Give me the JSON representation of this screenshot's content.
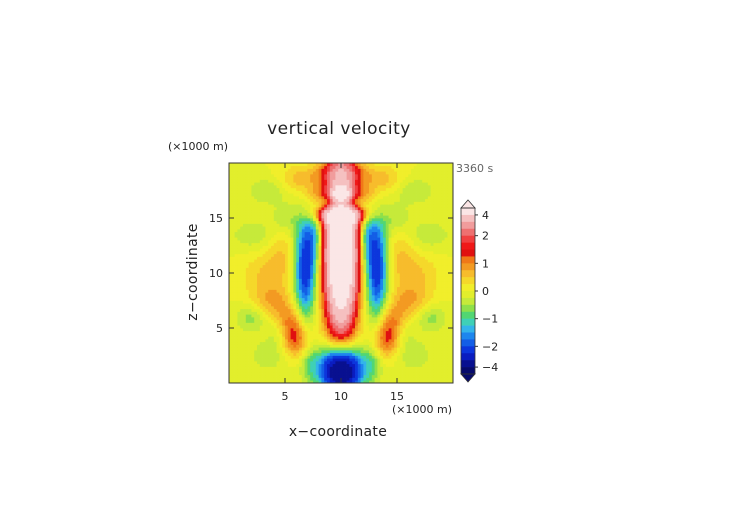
{
  "chart_data": {
    "type": "heatmap",
    "title": "vertical velocity",
    "time_label": "3360 s",
    "xlabel": "x−coordinate",
    "ylabel": "z−coordinate",
    "x_unit": "(×1000 m)",
    "y_unit": "(×1000 m)",
    "xlim": [
      0,
      20
    ],
    "ylim": [
      0,
      20
    ],
    "x_ticks": [
      5,
      10,
      15
    ],
    "y_ticks": [
      5,
      10,
      15
    ],
    "x_tick_labels": [
      "5",
      "10",
      "15"
    ],
    "y_tick_labels": [
      "5",
      "10",
      "15"
    ],
    "colorbar": {
      "tick_values": [
        4,
        2,
        1,
        0,
        -1,
        -2,
        -4
      ],
      "tick_labels": [
        "4",
        "2",
        "1",
        "0",
        "−1",
        "−2",
        "−4"
      ],
      "levels": [
        5,
        4,
        3,
        2.5,
        2,
        1.75,
        1.5,
        1.25,
        1,
        0.75,
        0.5,
        0.25,
        0,
        -0.25,
        -0.5,
        -0.75,
        -1,
        -1.25,
        -1.5,
        -1.75,
        -2,
        -2.5,
        -3,
        -4,
        -5
      ],
      "colors": [
        "#fbe6e6",
        "#f5c0c0",
        "#f19c9c",
        "#ee7070",
        "#f04040",
        "#f01818",
        "#e01010",
        "#f07818",
        "#f39a22",
        "#f7bc2c",
        "#f5d82a",
        "#f1ee2a",
        "#e2ee2c",
        "#c6ea3a",
        "#8fe04a",
        "#52d672",
        "#3fd0b6",
        "#33b4ea",
        "#1d86ee",
        "#135ee6",
        "#0c36dc",
        "#0a1cc0",
        "#081090",
        "#060a6c"
      ],
      "over_color": "#fbe6e6",
      "under_color": "#060a6c"
    },
    "features": [
      {
        "x": 10,
        "z": 12.0,
        "sx": 1.0,
        "sz": 5.0,
        "w": 7.0
      },
      {
        "x": 10,
        "z": 15.3,
        "sx": 1.7,
        "sz": 0.6,
        "w": 2.2
      },
      {
        "x": 10,
        "z": 17.2,
        "sx": 0.5,
        "sz": 0.45,
        "w": 2.8
      },
      {
        "x": 10,
        "z": 1.2,
        "sx": 1.3,
        "sz": 1.5,
        "w": -4.6
      },
      {
        "x": 10,
        "z": 16.3,
        "sx": 1.6,
        "sz": 0.5,
        "w": -2.0
      },
      {
        "x": 6.8,
        "z": 10.5,
        "sx": 0.7,
        "sz": 3.5,
        "w": -2.4
      },
      {
        "x": 13.2,
        "z": 10.5,
        "sx": 0.7,
        "sz": 3.5,
        "w": -2.4
      },
      {
        "x": 7.7,
        "z": 13.5,
        "sx": 0.5,
        "sz": 2.0,
        "w": -1.0
      },
      {
        "x": 12.3,
        "z": 13.5,
        "sx": 0.5,
        "sz": 2.0,
        "w": -1.0
      },
      {
        "x": 5.6,
        "z": 5.0,
        "sx": 1.0,
        "sz": 1.3,
        "w": 1.4
      },
      {
        "x": 14.4,
        "z": 5.0,
        "sx": 1.0,
        "sz": 1.3,
        "w": 1.4
      },
      {
        "x": 6.3,
        "z": 3.5,
        "sx": 0.9,
        "sz": 1.0,
        "w": 0.8
      },
      {
        "x": 13.7,
        "z": 3.5,
        "sx": 0.9,
        "sz": 1.0,
        "w": 0.8
      },
      {
        "x": 3.8,
        "z": 7.5,
        "sx": 1.4,
        "sz": 1.2,
        "w": 0.8
      },
      {
        "x": 16.2,
        "z": 7.5,
        "sx": 1.4,
        "sz": 1.2,
        "w": 0.8
      },
      {
        "x": 3.5,
        "z": 10.2,
        "sx": 1.6,
        "sz": 1.2,
        "w": 0.5
      },
      {
        "x": 16.5,
        "z": 10.2,
        "sx": 1.6,
        "sz": 1.2,
        "w": 0.5
      },
      {
        "x": 4.8,
        "z": 12.3,
        "sx": 1.0,
        "sz": 1.5,
        "w": 0.45
      },
      {
        "x": 15.2,
        "z": 12.3,
        "sx": 1.0,
        "sz": 1.5,
        "w": 0.45
      },
      {
        "x": 7.5,
        "z": 16.5,
        "sx": 0.8,
        "sz": 0.8,
        "w": 1.1
      },
      {
        "x": 12.5,
        "z": 16.5,
        "sx": 0.8,
        "sz": 0.8,
        "w": 1.1
      },
      {
        "x": 6.8,
        "z": 18.5,
        "sx": 1.5,
        "sz": 0.9,
        "w": 0.8
      },
      {
        "x": 13.2,
        "z": 18.5,
        "sx": 1.5,
        "sz": 0.9,
        "w": 0.8
      },
      {
        "x": 4.5,
        "z": 4.5,
        "sx": 0.8,
        "sz": 1.0,
        "w": -0.6
      },
      {
        "x": 15.5,
        "z": 4.5,
        "sx": 0.8,
        "sz": 1.0,
        "w": -0.6
      },
      {
        "x": 2.0,
        "z": 6.0,
        "sx": 1.0,
        "sz": 0.9,
        "w": -0.7
      },
      {
        "x": 18.0,
        "z": 6.0,
        "sx": 1.0,
        "sz": 0.9,
        "w": -0.7
      },
      {
        "x": 3.5,
        "z": 2.5,
        "sx": 1.2,
        "sz": 1.0,
        "w": -0.45
      },
      {
        "x": 16.5,
        "z": 2.5,
        "sx": 1.2,
        "sz": 1.0,
        "w": -0.45
      },
      {
        "x": 2.2,
        "z": 13.5,
        "sx": 1.5,
        "sz": 1.0,
        "w": -0.45
      },
      {
        "x": 17.8,
        "z": 13.5,
        "sx": 1.5,
        "sz": 1.0,
        "w": -0.45
      },
      {
        "x": 3.5,
        "z": 17.5,
        "sx": 1.3,
        "sz": 0.9,
        "w": -0.5
      },
      {
        "x": 16.5,
        "z": 17.5,
        "sx": 1.3,
        "sz": 0.9,
        "w": -0.5
      },
      {
        "x": 5.0,
        "z": 15.0,
        "sx": 0.8,
        "sz": 0.9,
        "w": -0.5
      },
      {
        "x": 15.0,
        "z": 15.0,
        "sx": 0.8,
        "sz": 0.9,
        "w": -0.5
      },
      {
        "x": 7.2,
        "z": 2.0,
        "sx": 0.6,
        "sz": 1.2,
        "w": -0.6
      },
      {
        "x": 12.8,
        "z": 2.0,
        "sx": 0.6,
        "sz": 1.2,
        "w": -0.6
      },
      {
        "x": 10,
        "z": 19.3,
        "sx": 1.5,
        "sz": 0.6,
        "w": 0.7
      }
    ]
  }
}
